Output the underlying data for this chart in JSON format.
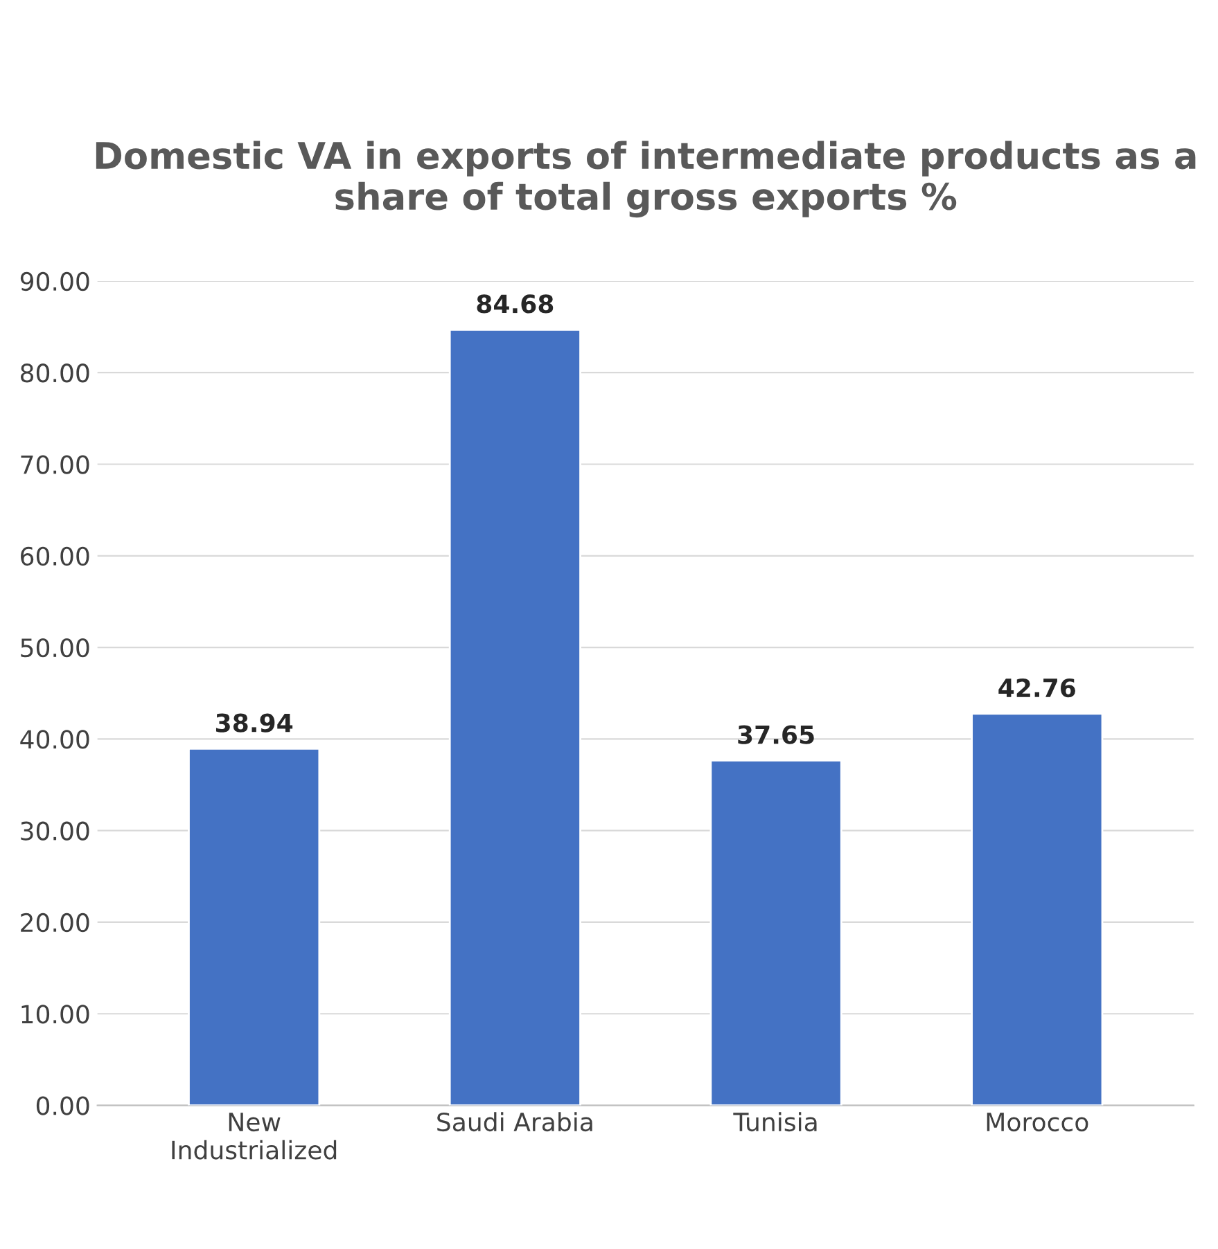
{
  "chart_data": {
    "type": "bar",
    "title": "Domestic VA in exports of intermediate products as a share of total gross exports %",
    "categories": [
      "New Industrialized",
      "Saudi Arabia",
      "Tunisia",
      "Morocco"
    ],
    "values": [
      38.94,
      84.68,
      37.65,
      42.76
    ],
    "color": "#4472c4",
    "value_labels": [
      "38.94",
      "84.68",
      "37.65",
      "42.76"
    ],
    "ylim": [
      0,
      90
    ],
    "yticks": [
      {
        "value": 0,
        "label": "0.00"
      },
      {
        "value": 10,
        "label": "10.00"
      },
      {
        "value": 20,
        "label": "20.00"
      },
      {
        "value": 30,
        "label": "30.00"
      },
      {
        "value": 40,
        "label": "40.00"
      },
      {
        "value": 50,
        "label": "50.00"
      },
      {
        "value": 60,
        "label": "60.00"
      },
      {
        "value": 70,
        "label": "70.00"
      },
      {
        "value": 80,
        "label": "80.00"
      },
      {
        "value": 90,
        "label": "90.00"
      }
    ],
    "grid": "y"
  }
}
